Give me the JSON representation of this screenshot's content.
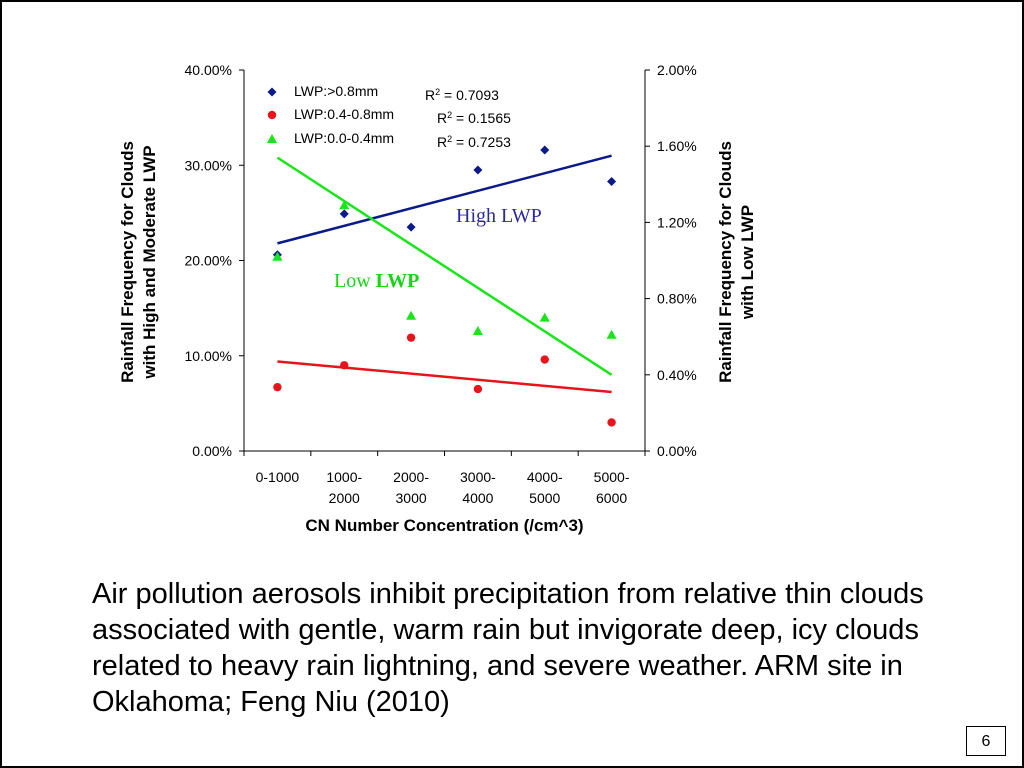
{
  "slide_number": "6",
  "caption": "Air pollution aerosols inhibit precipitation from relative thin clouds associated with gentle, warm rain but invigorate deep, icy clouds related to heavy rain lightning, and severe weather. ARM site in Oklahoma; Feng Niu (2010)",
  "chart_data": {
    "type": "scatter",
    "title": "",
    "xlabel": "CN Number Concentration (/cm^3)",
    "ylabel_left_lines": [
      "Rainfall Frequency for Clouds",
      "with High and Moderate LWP"
    ],
    "ylabel_right_lines": [
      "Rainfall Frequency for Clouds",
      "with Low LWP"
    ],
    "categories": [
      [
        "0-1000"
      ],
      [
        "1000-",
        "2000"
      ],
      [
        "2000-",
        "3000"
      ],
      [
        "3000-",
        "4000"
      ],
      [
        "4000-",
        "5000"
      ],
      [
        "5000-",
        "6000"
      ]
    ],
    "y_left": {
      "range": [
        0,
        40
      ],
      "ticks": [
        "0.00%",
        "10.00%",
        "20.00%",
        "30.00%",
        "40.00%"
      ],
      "tick_values": [
        0,
        10,
        20,
        30,
        40
      ]
    },
    "y_right": {
      "range": [
        0,
        2
      ],
      "ticks": [
        "0.00%",
        "0.40%",
        "0.80%",
        "1.20%",
        "1.60%",
        "2.00%"
      ],
      "tick_values": [
        0,
        0.4,
        0.8,
        1.2,
        1.6,
        2.0
      ]
    },
    "grid": false,
    "legend_position": "top-left",
    "series": [
      {
        "name": "LWP:>0.8mm",
        "axis": "left",
        "marker": "diamond",
        "color": "#0b1a8a",
        "values": [
          20.6,
          24.9,
          23.5,
          29.5,
          31.6,
          28.3
        ],
        "trend": [
          21.8,
          31.0
        ],
        "r2": "0.7093"
      },
      {
        "name": "LWP:0.4-0.8mm",
        "axis": "left",
        "marker": "circle",
        "color": "#e8141b",
        "values": [
          6.7,
          9.0,
          11.9,
          6.5,
          9.6,
          3.0
        ],
        "trend": [
          9.4,
          6.2
        ],
        "r2": "0.1565"
      },
      {
        "name": "LWP:0.0-0.4mm",
        "axis": "right",
        "marker": "triangle",
        "color": "#19e619",
        "values": [
          1.02,
          1.29,
          0.71,
          0.63,
          0.7,
          0.61
        ],
        "trend": [
          1.54,
          0.4
        ],
        "r2": "0.7253"
      }
    ],
    "annotations": [
      {
        "text": "High LWP",
        "color": "#2a2a9a"
      },
      {
        "text_plain": "Low ",
        "text_bold": "LWP",
        "color": "#19d419"
      }
    ]
  }
}
